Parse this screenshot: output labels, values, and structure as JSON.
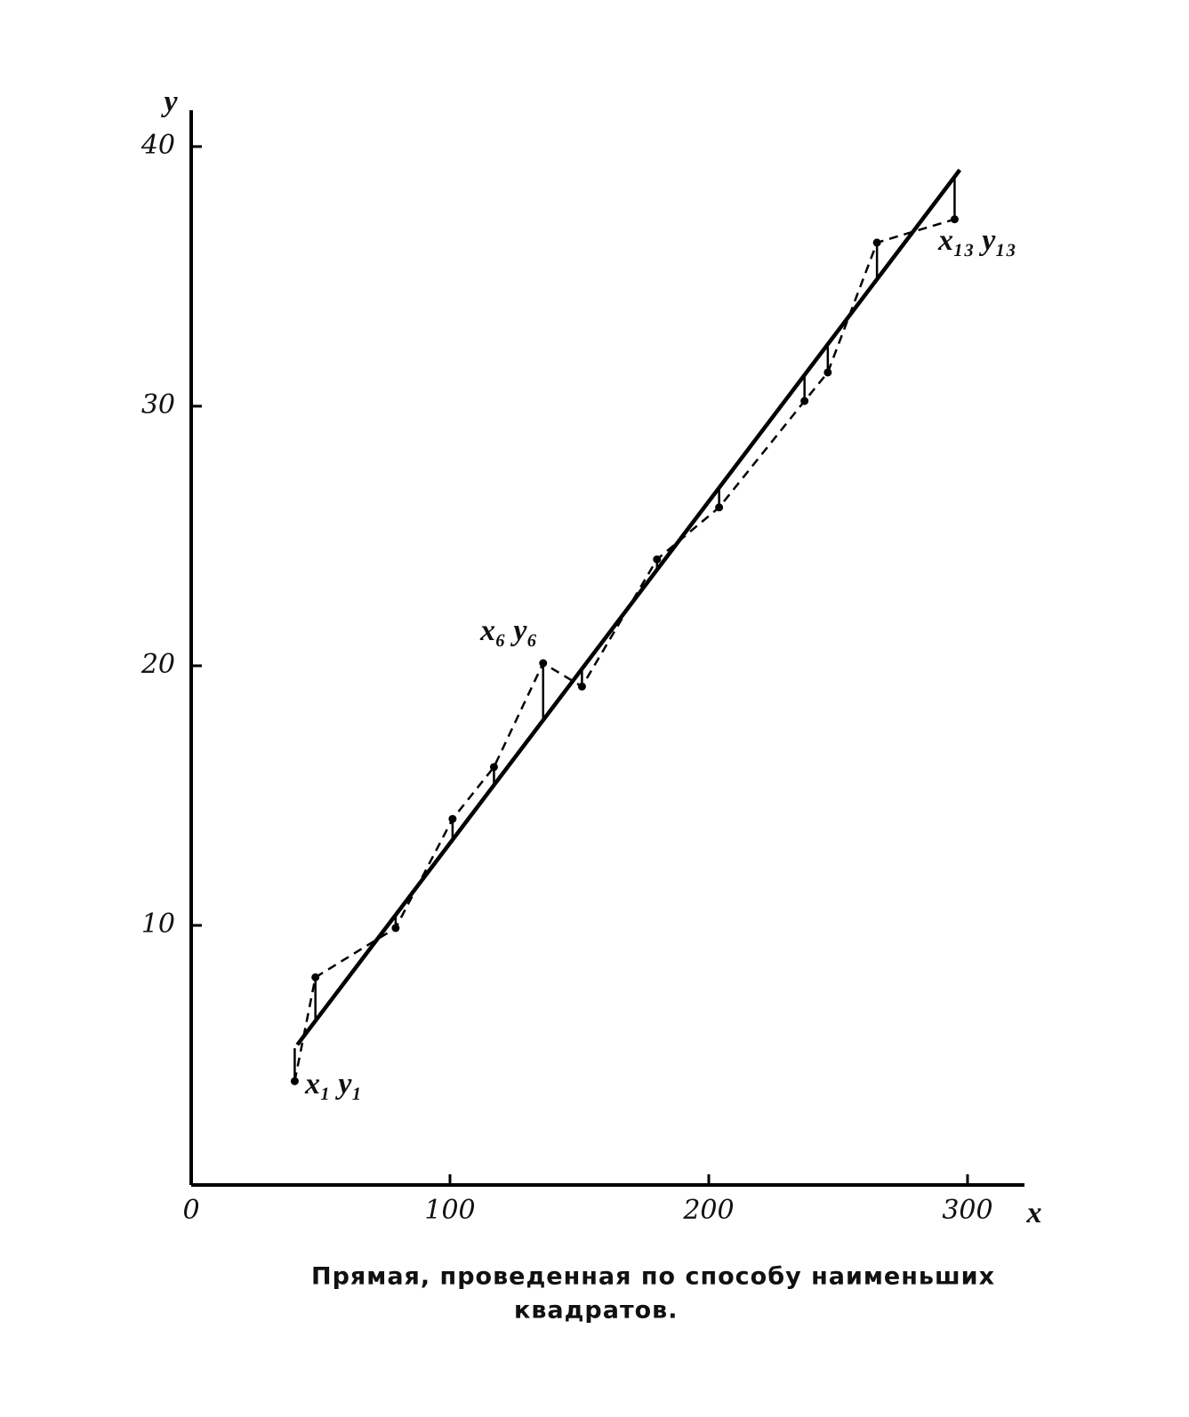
{
  "chart_data": {
    "type": "scatter",
    "x_label": "x",
    "y_label": "y",
    "caption": [
      "Прямая, проведенная по способу наименьших",
      "квадратов."
    ],
    "annotations": [
      "x₁ y₁",
      "x₆ y₆",
      "x₁₃ y₁₃"
    ],
    "xlim": [
      0,
      322
    ],
    "ylim": [
      0,
      41.4
    ],
    "xticks": [
      0,
      100,
      200,
      300
    ],
    "yticks": [
      10,
      20,
      30,
      40
    ],
    "series": [
      {
        "color": "#000000",
        "line_style": "dashed",
        "markers": true,
        "x": [
          40,
          48,
          79,
          101,
          117,
          136,
          151,
          180,
          204,
          237,
          246,
          265,
          295
        ],
        "values": [
          4,
          8,
          9.9,
          14.1,
          16.1,
          20.1,
          19.2,
          24.1,
          26.1,
          30.2,
          31.3,
          36.3,
          37.2
        ]
      },
      {
        "color": "#000000",
        "line_style": "solid",
        "markers": false,
        "x": [
          41,
          297
        ],
        "values": [
          5.4,
          39.1
        ]
      }
    ]
  }
}
